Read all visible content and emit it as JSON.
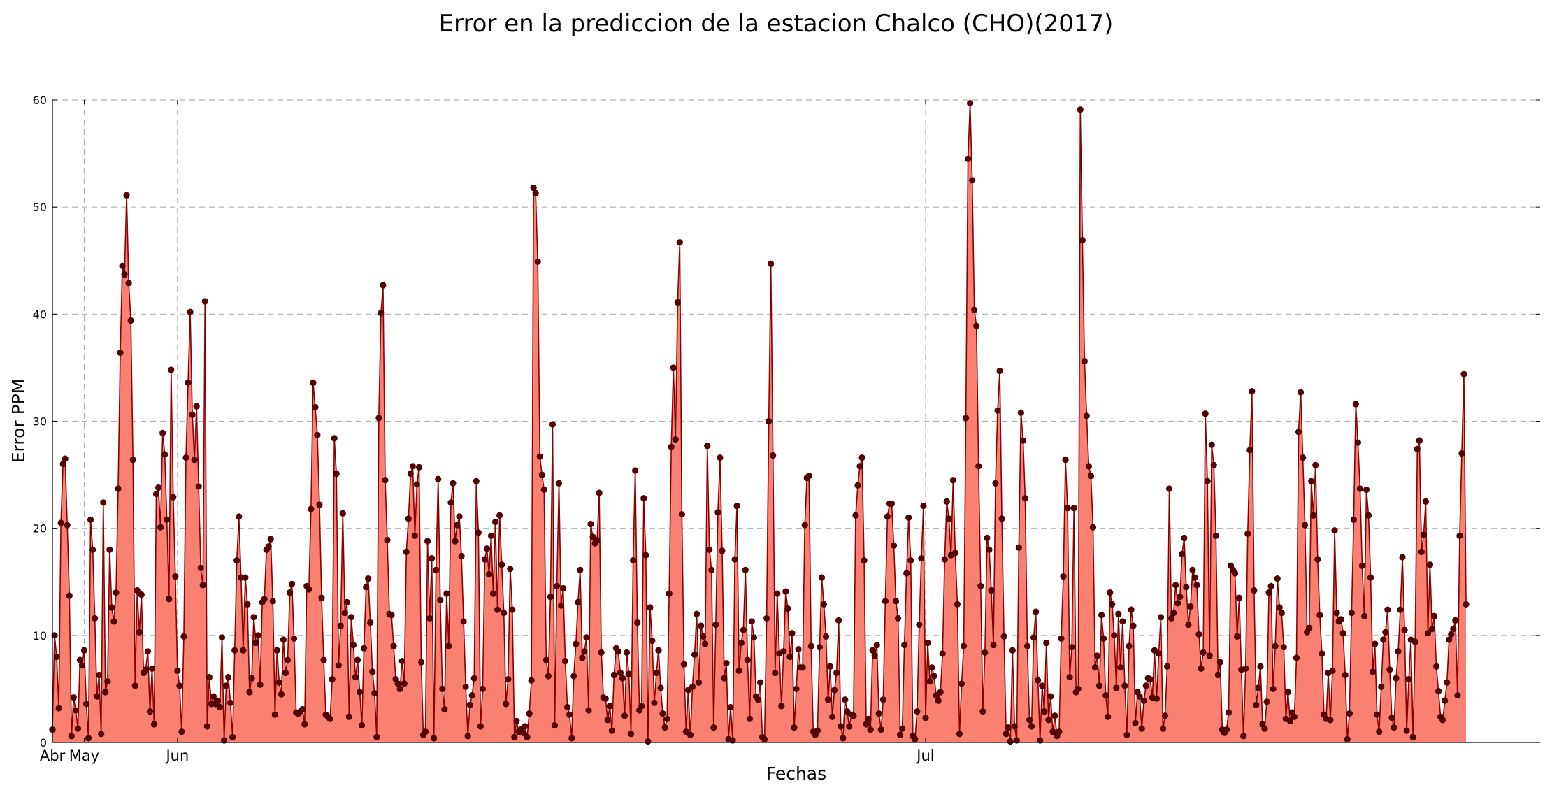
{
  "chart_data": {
    "type": "area",
    "title": "Error en la prediccion de la estacion Chalco (CHO)(2017)",
    "xlabel": "Fechas",
    "ylabel": "Error PPM",
    "ylim": [
      0,
      60
    ],
    "yticks": [
      "0",
      "10",
      "20",
      "30",
      "40",
      "50",
      "60"
    ],
    "xticks": [
      {
        "label": "Abr",
        "index": 0
      },
      {
        "label": "May",
        "index": 15
      },
      {
        "label": "Jun",
        "index": 59
      },
      {
        "label": "Jul",
        "index": 412
      }
    ],
    "x_unit": "hourly sample index (Abr→Jul 2017)",
    "grid": true,
    "colors": {
      "fill": "#fa8072",
      "line": "#8b0000",
      "marker": "#5a0000",
      "grid": "#b0b0b0"
    },
    "series": [
      {
        "values": [
          1.2,
          10.0,
          8.0,
          3.2,
          20.5,
          26.0,
          26.5,
          20.3,
          13.7,
          0.6,
          4.2,
          3.0,
          1.3,
          7.7,
          7.2,
          8.6,
          3.6,
          0.4,
          20.8,
          18.0,
          11.6,
          4.3,
          6.3,
          0.8,
          22.4,
          4.7,
          5.7,
          18.0,
          12.6,
          11.3,
          14.0,
          23.7,
          36.4,
          44.5,
          43.7,
          51.1,
          42.9,
          39.4,
          26.4,
          5.3,
          14.2,
          10.3,
          13.8,
          6.5,
          6.8,
          8.5,
          2.9,
          6.9,
          1.7,
          23.2,
          23.8,
          20.1,
          28.9,
          26.9,
          20.8,
          13.4,
          34.8,
          22.9,
          15.5,
          6.7,
          5.3,
          1.0,
          9.9,
          26.6,
          33.6,
          40.2,
          30.6,
          26.4,
          31.4,
          23.9,
          16.3,
          14.7,
          41.2,
          1.5,
          6.1,
          3.6,
          4.3,
          3.6,
          3.9,
          3.3,
          9.8,
          0.2,
          5.3,
          6.1,
          3.7,
          0.5,
          8.6,
          17.0,
          21.1,
          15.4,
          8.6,
          15.4,
          12.9,
          4.7,
          6.0,
          11.7,
          9.3,
          10.0,
          5.4,
          13.1,
          13.4,
          18.0,
          18.3,
          19.0,
          13.2,
          2.6,
          8.6,
          5.6,
          4.5,
          9.6,
          6.5,
          7.7,
          14.0,
          14.8,
          9.7,
          2.8,
          2.7,
          2.9,
          3.1,
          1.7,
          14.6,
          14.3,
          21.8,
          33.6,
          31.3,
          28.7,
          22.2,
          13.5,
          7.7,
          2.6,
          2.4,
          2.2,
          5.9,
          28.4,
          25.1,
          7.2,
          10.9,
          21.4,
          12.1,
          13.1,
          2.4,
          11.7,
          9.1,
          6.1,
          7.7,
          4.7,
          1.6,
          8.8,
          14.5,
          15.3,
          11.2,
          6.6,
          4.6,
          0.5,
          30.3,
          40.1,
          42.7,
          24.5,
          18.9,
          12.0,
          11.9,
          9.0,
          5.9,
          5.5,
          5.0,
          7.6,
          5.5,
          17.8,
          20.9,
          25.1,
          25.8,
          19.3,
          24.1,
          25.7,
          7.5,
          0.7,
          1.0,
          18.8,
          11.6,
          17.2,
          0.4,
          16.1,
          24.6,
          13.3,
          5.0,
          3.1,
          13.9,
          9.0,
          22.4,
          24.2,
          18.8,
          20.3,
          21.1,
          17.4,
          11.3,
          5.2,
          0.6,
          3.5,
          4.4,
          6.0,
          24.4,
          19.6,
          1.5,
          5.0,
          17.1,
          18.1,
          15.7,
          19.3,
          13.9,
          20.6,
          12.4,
          21.2,
          16.6,
          12.1,
          3.6,
          5.9,
          16.2,
          12.4,
          0.5,
          2.0,
          1.0,
          1.2,
          0.9,
          1.5,
          0.5,
          2.7,
          5.8,
          51.8,
          51.3,
          44.9,
          26.7,
          25.0,
          23.6,
          7.7,
          6.2,
          13.6,
          29.7,
          1.6,
          14.6,
          24.2,
          12.8,
          14.4,
          7.6,
          3.3,
          2.6,
          0.4,
          6.2,
          9.2,
          13.1,
          16.1,
          7.9,
          8.5,
          9.8,
          3.0,
          20.4,
          19.2,
          18.6,
          18.9,
          23.3,
          8.4,
          4.2,
          4.1,
          2.1,
          3.4,
          1.1,
          6.3,
          8.8,
          8.5,
          6.5,
          6.0,
          2.5,
          8.4,
          6.4,
          0.8,
          17.0,
          25.4,
          11.2,
          3.0,
          3.4,
          22.8,
          17.5,
          0.1,
          12.6,
          9.5,
          3.7,
          6.5,
          8.6,
          5.1,
          2.7,
          1.4,
          2.2,
          13.9,
          27.6,
          35.0,
          28.3,
          41.1,
          46.7,
          21.3,
          7.3,
          1.0,
          4.9,
          0.7,
          5.2,
          8.2,
          12.0,
          5.6,
          10.9,
          9.9,
          9.2,
          27.7,
          18.0,
          16.1,
          1.4,
          11.0,
          21.5,
          26.6,
          17.9,
          6.0,
          7.4,
          0.3,
          3.3,
          0.2,
          17.1,
          22.1,
          6.7,
          9.3,
          10.5,
          16.1,
          7.7,
          2.2,
          11.3,
          9.8,
          4.3,
          4.0,
          5.6,
          0.5,
          0.3,
          11.6,
          30.0,
          44.7,
          26.8,
          6.5,
          13.9,
          8.3,
          3.4,
          8.5,
          14.1,
          12.5,
          8.0,
          10.2,
          1.4,
          5.0,
          8.7,
          7.0,
          7.0,
          20.3,
          24.7,
          24.9,
          9.0,
          1.0,
          0.7,
          1.1,
          8.9,
          15.4,
          12.9,
          9.9,
          4.0,
          7.1,
          2.4,
          4.9,
          6.5,
          11.4,
          1.5,
          0.4,
          4.0,
          2.9,
          1.5,
          2.6,
          2.5,
          21.2,
          24.0,
          25.8,
          26.6,
          17.0,
          1.7,
          2.2,
          1.2,
          8.6,
          8.1,
          9.1,
          2.7,
          1.2,
          4.0,
          13.2,
          21.1,
          22.3,
          22.3,
          18.4,
          13.2,
          11.6,
          0.7,
          1.3,
          9.1,
          15.8,
          21.0,
          17.0,
          0.6,
          0.3,
          2.9,
          11.0,
          17.2,
          22.1,
          2.3,
          9.3,
          5.7,
          7.0,
          6.2,
          4.4,
          3.9,
          4.7,
          8.3,
          17.1,
          22.5,
          20.9,
          17.5,
          24.5,
          17.7,
          12.9,
          0.8,
          5.5,
          9.0,
          30.3,
          54.5,
          59.7,
          52.5,
          40.4,
          38.9,
          25.8,
          14.6,
          2.9,
          8.4,
          19.1,
          18.0,
          14.2,
          9.1,
          24.2,
          31.0,
          34.7,
          20.9,
          9.9,
          0.8,
          1.4,
          0.1,
          8.6,
          1.5,
          0.2,
          18.2,
          30.8,
          28.2,
          22.8,
          9.0,
          2.1,
          1.5,
          9.8,
          12.2,
          5.8,
          0.2,
          5.3,
          2.9,
          9.3,
          2.1,
          4.3,
          1.0,
          2.5,
          0.6,
          1.0,
          9.7,
          15.5,
          26.4,
          21.9,
          6.1,
          8.9,
          21.9,
          4.7,
          5.0,
          59.1,
          46.9,
          35.6,
          30.5,
          25.8,
          24.9,
          20.1,
          7.0,
          8.1,
          5.3,
          11.9,
          9.7,
          4.4,
          2.4,
          14.0,
          12.9,
          10.0,
          5.1,
          12.0,
          7.0,
          11.3,
          5.3,
          0.7,
          9.0,
          12.4,
          10.9,
          1.8,
          4.7,
          4.3,
          1.3,
          3.9,
          5.3,
          6.0,
          5.9,
          4.2,
          8.6,
          4.1,
          8.3,
          11.7,
          1.3,
          2.5,
          7.1,
          23.7,
          11.6,
          12.1,
          14.7,
          13.0,
          13.6,
          17.6,
          19.1,
          14.5,
          11.0,
          12.7,
          16.1,
          15.4,
          14.7,
          10.1,
          6.9,
          8.4,
          30.7,
          24.4,
          8.1,
          27.8,
          25.9,
          19.3,
          6.3,
          7.5,
          1.2,
          0.9,
          1.2,
          2.8,
          16.5,
          16.1,
          15.8,
          9.9,
          13.5,
          6.8,
          0.6,
          6.9,
          19.5,
          27.3,
          32.8,
          14.2,
          3.5,
          5.1,
          7.1,
          1.7,
          1.3,
          3.8,
          14.0,
          14.6,
          5.0,
          9.0,
          15.3,
          12.6,
          12.1,
          8.9,
          2.2,
          4.7,
          2.0,
          2.8,
          2.4,
          7.9,
          29.0,
          32.7,
          26.6,
          20.3,
          10.3,
          10.7,
          24.4,
          21.2,
          25.9,
          17.1,
          11.9,
          8.3,
          2.6,
          2.2,
          6.5,
          2.1,
          6.7,
          19.8,
          12.1,
          11.3,
          11.5,
          10.2,
          6.3,
          0.3,
          2.7,
          12.1,
          20.8,
          31.6,
          28.0,
          23.7,
          16.5,
          11.8,
          23.6,
          21.2,
          15.4,
          6.6,
          9.2,
          2.6,
          1.0,
          5.2,
          9.6,
          10.3,
          12.4,
          6.8,
          2.3,
          1.4,
          6.0,
          8.5,
          12.4,
          17.3,
          10.5,
          1.1,
          5.9,
          9.6,
          0.5,
          9.4,
          27.4,
          28.2,
          17.8,
          19.4,
          22.5,
          10.2,
          16.6,
          10.6,
          11.8,
          7.1,
          4.8,
          2.4,
          2.1,
          3.9,
          5.6,
          9.6,
          10.1,
          10.6,
          11.4,
          4.4,
          19.3,
          27.0,
          34.4,
          12.9
        ]
      }
    ]
  }
}
